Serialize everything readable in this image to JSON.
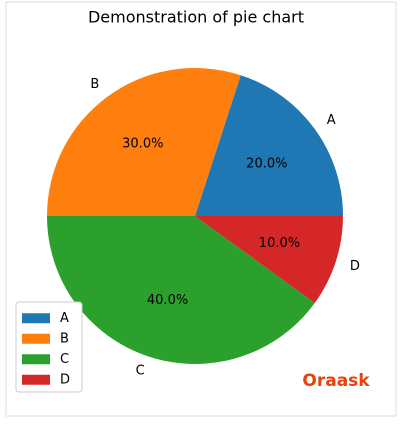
{
  "chart_data": {
    "type": "pie",
    "title": "Demonstration of pie chart",
    "categories": [
      "A",
      "B",
      "C",
      "D"
    ],
    "values": [
      20,
      30,
      40,
      10
    ],
    "value_labels": [
      "20.0%",
      "30.0%",
      "40.0%",
      "10.0%"
    ],
    "colors": [
      "#1f77b4",
      "#ff7f0e",
      "#2ca02c",
      "#d62728"
    ],
    "start_angle": 0,
    "legend": "lower left"
  },
  "watermark": "Oraask"
}
